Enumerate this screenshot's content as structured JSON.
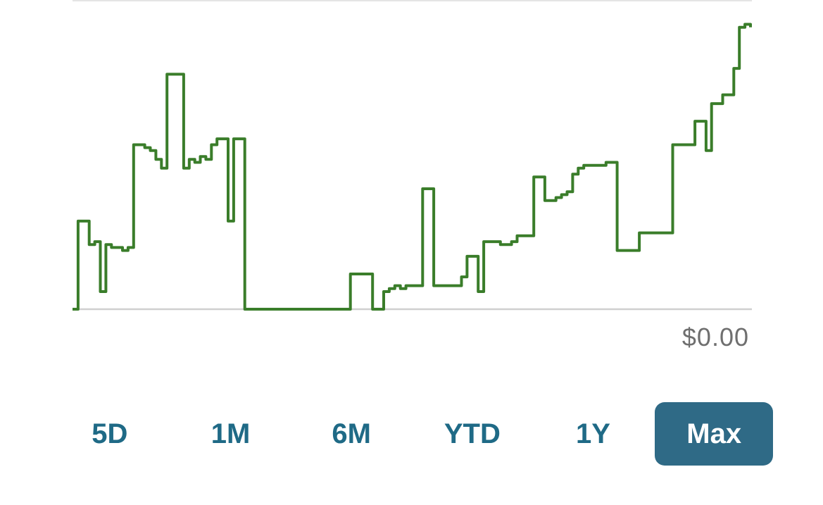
{
  "chart_data": {
    "type": "line",
    "title": "",
    "xlabel": "",
    "ylabel": "",
    "baseline_label": "$0.00",
    "line_color": "#3a7d2a",
    "baseline_color": "#d0d0d0",
    "ylim": [
      0,
      100
    ],
    "grid": false,
    "legend": "none",
    "series": [
      {
        "values": [
          0,
          30,
          30,
          22,
          23,
          6,
          22,
          21,
          21,
          20,
          21,
          56,
          56,
          55,
          54,
          51,
          48,
          80,
          80,
          80,
          48,
          51,
          50,
          52,
          51,
          56,
          58,
          58,
          30,
          58,
          58,
          0,
          0,
          0,
          0,
          0,
          0,
          0,
          0,
          0,
          0,
          0,
          0,
          0,
          0,
          0,
          0,
          0,
          0,
          0,
          12,
          12,
          12,
          12,
          0,
          0,
          6,
          7,
          8,
          7,
          8,
          8,
          8,
          41,
          41,
          8,
          8,
          8,
          8,
          8,
          11,
          18,
          18,
          6,
          23,
          23,
          23,
          22,
          22,
          23,
          25,
          25,
          25,
          45,
          45,
          37,
          37,
          38,
          39,
          40,
          46,
          48,
          49,
          49,
          49,
          49,
          50,
          50,
          20,
          20,
          20,
          20,
          26,
          26,
          26,
          26,
          26,
          26,
          56,
          56,
          56,
          56,
          64,
          64,
          54,
          70,
          70,
          73,
          73,
          82,
          96,
          97,
          96
        ]
      }
    ]
  },
  "range_selector": {
    "buttons": [
      {
        "label": "5D"
      },
      {
        "label": "1M"
      },
      {
        "label": "6M"
      },
      {
        "label": "YTD"
      },
      {
        "label": "1Y"
      },
      {
        "label": "Max"
      }
    ],
    "active_index": 5,
    "accent_color": "#2f6a86"
  }
}
